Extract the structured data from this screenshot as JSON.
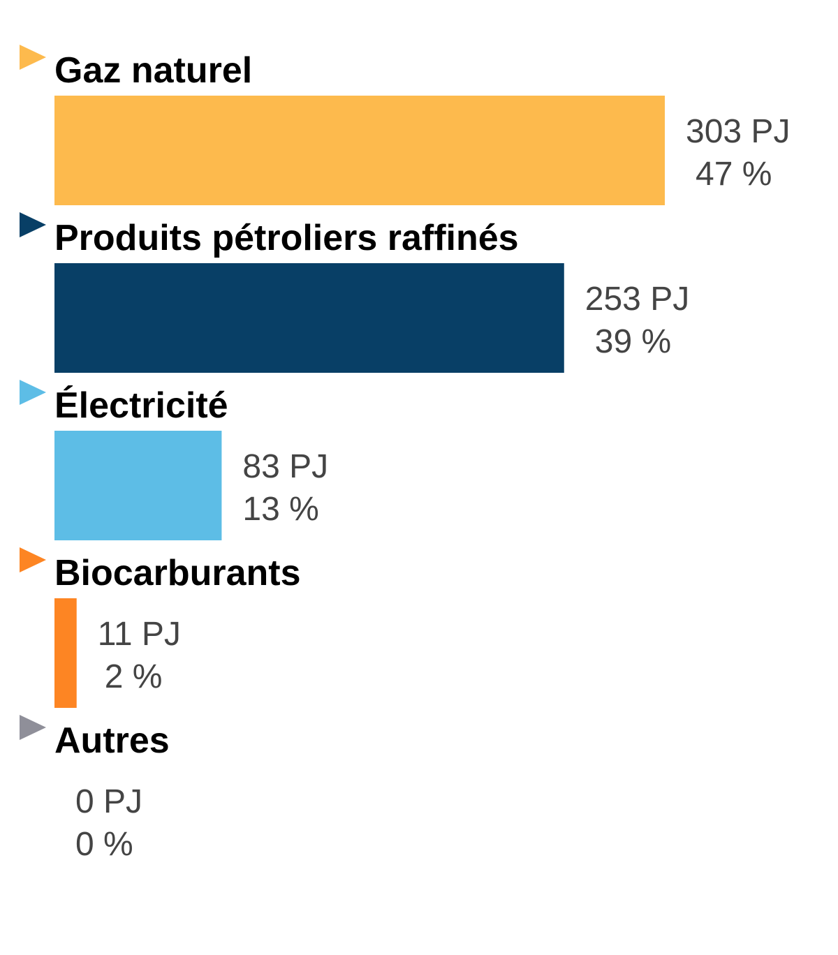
{
  "chart_data": {
    "type": "bar",
    "orientation": "horizontal",
    "unit": "PJ",
    "categories": [
      "Gaz naturel",
      "Produits pétroliers raffinés",
      "Électricité",
      "Biocarburants",
      "Autres"
    ],
    "values": [
      303,
      253,
      83,
      11,
      0
    ],
    "percent_labels": [
      "47 %",
      "39 %",
      "13 %",
      "2 %",
      "0 %"
    ],
    "value_labels": [
      "303 PJ",
      "253 PJ",
      "83 PJ",
      "11 PJ",
      "0 PJ"
    ],
    "colors": [
      "#FDBA4D",
      "#083F66",
      "#5DBDE6",
      "#FD8523",
      "#8F8F99"
    ],
    "xlim": [
      0,
      303
    ],
    "grid": false,
    "legend": "none"
  }
}
